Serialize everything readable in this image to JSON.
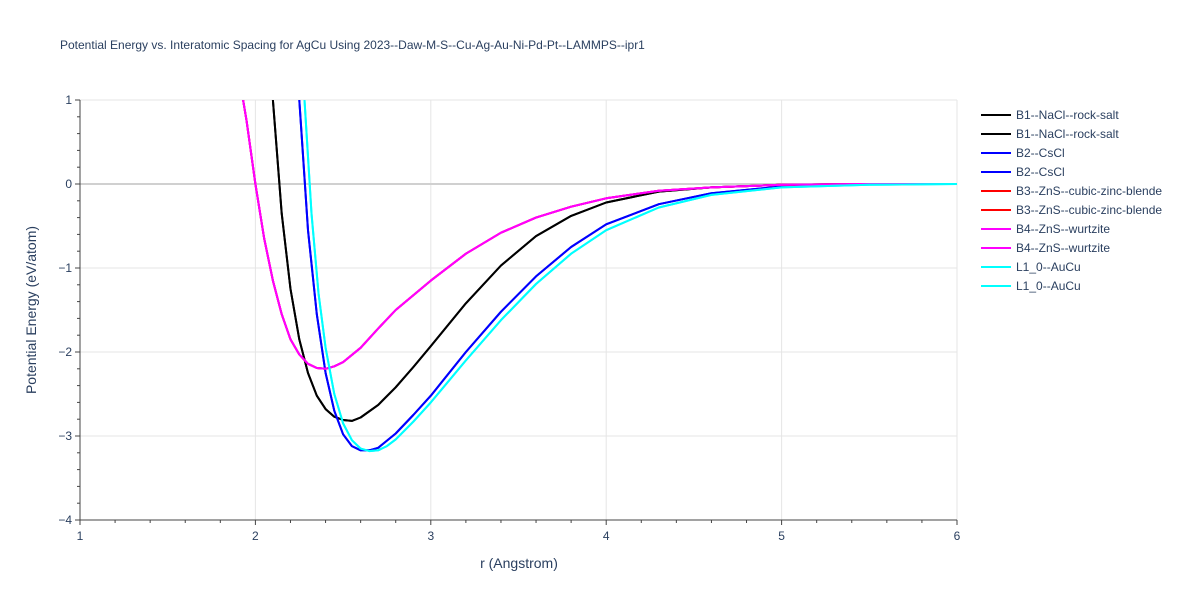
{
  "chart_data": {
    "type": "line",
    "title": "Potential Energy vs. Interatomic Spacing for AgCu Using 2023--Daw-M-S--Cu-Ag-Au-Ni-Pd-Pt--LAMMPS--ipr1",
    "xlabel": "r (Angstrom)",
    "ylabel": "Potential Energy (eV/atom)",
    "xlim": [
      1,
      6
    ],
    "ylim": [
      -4,
      1
    ],
    "x_ticks": [
      "1",
      "2",
      "3",
      "4",
      "5",
      "6"
    ],
    "y_ticks": [
      "1",
      "0",
      "−1",
      "−2",
      "−3",
      "−4"
    ],
    "grid": true,
    "legend_position": "right",
    "series": [
      {
        "name": "B1--NaCl--rock-salt",
        "color": "#000000",
        "x": [
          2.1,
          2.15,
          2.2,
          2.25,
          2.3,
          2.35,
          2.4,
          2.45,
          2.5,
          2.55,
          2.6,
          2.7,
          2.8,
          2.9,
          3.0,
          3.2,
          3.4,
          3.6,
          3.8,
          4.0,
          4.3,
          4.6,
          5.0,
          5.5,
          6.0
        ],
        "y": [
          1.0,
          -0.35,
          -1.25,
          -1.85,
          -2.25,
          -2.52,
          -2.68,
          -2.77,
          -2.81,
          -2.82,
          -2.78,
          -2.63,
          -2.42,
          -2.18,
          -1.93,
          -1.42,
          -0.97,
          -0.62,
          -0.38,
          -0.22,
          -0.09,
          -0.04,
          -0.01,
          0.0,
          0.0
        ]
      },
      {
        "name": "B1--NaCl--rock-salt",
        "color": "#000000",
        "x": [
          2.1,
          2.15,
          2.2,
          2.25,
          2.3,
          2.35,
          2.4,
          2.45,
          2.5,
          2.55,
          2.6,
          2.7,
          2.8,
          2.9,
          3.0,
          3.2,
          3.4,
          3.6,
          3.8,
          4.0,
          4.3,
          4.6,
          5.0,
          5.5,
          6.0
        ],
        "y": [
          1.0,
          -0.35,
          -1.25,
          -1.85,
          -2.25,
          -2.52,
          -2.68,
          -2.77,
          -2.81,
          -2.82,
          -2.78,
          -2.63,
          -2.42,
          -2.18,
          -1.93,
          -1.42,
          -0.97,
          -0.62,
          -0.38,
          -0.22,
          -0.09,
          -0.04,
          -0.01,
          0.0,
          0.0
        ]
      },
      {
        "name": "B2--CsCl",
        "color": "#0000ff",
        "x": [
          2.25,
          2.3,
          2.35,
          2.4,
          2.45,
          2.5,
          2.55,
          2.6,
          2.65,
          2.7,
          2.8,
          2.9,
          3.0,
          3.2,
          3.4,
          3.6,
          3.8,
          4.0,
          4.3,
          4.6,
          5.0,
          5.5,
          6.0
        ],
        "y": [
          1.0,
          -0.55,
          -1.55,
          -2.25,
          -2.7,
          -2.98,
          -3.12,
          -3.17,
          -3.17,
          -3.14,
          -2.97,
          -2.75,
          -2.52,
          -2.0,
          -1.52,
          -1.1,
          -0.75,
          -0.48,
          -0.24,
          -0.11,
          -0.03,
          0.0,
          0.0
        ]
      },
      {
        "name": "B2--CsCl",
        "color": "#0000ff",
        "x": [
          2.25,
          2.3,
          2.35,
          2.4,
          2.45,
          2.5,
          2.55,
          2.6,
          2.65,
          2.7,
          2.8,
          2.9,
          3.0,
          3.2,
          3.4,
          3.6,
          3.8,
          4.0,
          4.3,
          4.6,
          5.0,
          5.5,
          6.0
        ],
        "y": [
          1.0,
          -0.55,
          -1.55,
          -2.25,
          -2.7,
          -2.98,
          -3.12,
          -3.17,
          -3.17,
          -3.14,
          -2.97,
          -2.75,
          -2.52,
          -2.0,
          -1.52,
          -1.1,
          -0.75,
          -0.48,
          -0.24,
          -0.11,
          -0.03,
          0.0,
          0.0
        ]
      },
      {
        "name": "B3--ZnS--cubic-zinc-blende",
        "color": "#ff0000",
        "x": [
          1.93,
          1.95,
          2.0,
          2.05,
          2.1,
          2.15,
          2.2,
          2.25,
          2.3,
          2.35,
          2.4,
          2.45,
          2.5,
          2.6,
          2.7,
          2.8,
          3.0,
          3.2,
          3.4,
          3.6,
          3.8,
          4.0,
          4.3,
          4.6,
          5.0,
          5.5,
          6.0
        ],
        "y": [
          1.0,
          0.75,
          0.0,
          -0.65,
          -1.15,
          -1.55,
          -1.85,
          -2.03,
          -2.14,
          -2.19,
          -2.2,
          -2.17,
          -2.12,
          -1.95,
          -1.72,
          -1.5,
          -1.15,
          -0.83,
          -0.58,
          -0.4,
          -0.27,
          -0.17,
          -0.08,
          -0.04,
          -0.01,
          0.0,
          0.0
        ]
      },
      {
        "name": "B3--ZnS--cubic-zinc-blende",
        "color": "#ff0000",
        "x": [
          1.93,
          1.95,
          2.0,
          2.05,
          2.1,
          2.15,
          2.2,
          2.25,
          2.3,
          2.35,
          2.4,
          2.45,
          2.5,
          2.6,
          2.7,
          2.8,
          3.0,
          3.2,
          3.4,
          3.6,
          3.8,
          4.0,
          4.3,
          4.6,
          5.0,
          5.5,
          6.0
        ],
        "y": [
          1.0,
          0.75,
          0.0,
          -0.65,
          -1.15,
          -1.55,
          -1.85,
          -2.03,
          -2.14,
          -2.19,
          -2.2,
          -2.17,
          -2.12,
          -1.95,
          -1.72,
          -1.5,
          -1.15,
          -0.83,
          -0.58,
          -0.4,
          -0.27,
          -0.17,
          -0.08,
          -0.04,
          -0.01,
          0.0,
          0.0
        ]
      },
      {
        "name": "B4--ZnS--wurtzite",
        "color": "#ff00ff",
        "x": [
          1.93,
          1.95,
          2.0,
          2.05,
          2.1,
          2.15,
          2.2,
          2.25,
          2.3,
          2.35,
          2.4,
          2.45,
          2.5,
          2.6,
          2.7,
          2.8,
          3.0,
          3.2,
          3.4,
          3.6,
          3.8,
          4.0,
          4.3,
          4.6,
          5.0,
          5.5,
          6.0
        ],
        "y": [
          1.0,
          0.75,
          0.0,
          -0.65,
          -1.15,
          -1.55,
          -1.85,
          -2.03,
          -2.14,
          -2.19,
          -2.2,
          -2.17,
          -2.12,
          -1.95,
          -1.72,
          -1.5,
          -1.15,
          -0.83,
          -0.58,
          -0.4,
          -0.27,
          -0.17,
          -0.08,
          -0.04,
          -0.01,
          0.0,
          0.0
        ]
      },
      {
        "name": "B4--ZnS--wurtzite",
        "color": "#ff00ff",
        "x": [
          1.93,
          1.95,
          2.0,
          2.05,
          2.1,
          2.15,
          2.2,
          2.25,
          2.3,
          2.35,
          2.4,
          2.45,
          2.5,
          2.6,
          2.7,
          2.8,
          3.0,
          3.2,
          3.4,
          3.6,
          3.8,
          4.0,
          4.3,
          4.6,
          5.0,
          5.5,
          6.0
        ],
        "y": [
          1.0,
          0.75,
          0.0,
          -0.65,
          -1.15,
          -1.55,
          -1.85,
          -2.03,
          -2.14,
          -2.19,
          -2.2,
          -2.17,
          -2.12,
          -1.95,
          -1.72,
          -1.5,
          -1.15,
          -0.83,
          -0.58,
          -0.4,
          -0.27,
          -0.17,
          -0.08,
          -0.04,
          -0.01,
          0.0,
          0.0
        ]
      },
      {
        "name": "L1_0--AuCu",
        "color": "#00ffff",
        "x": [
          2.28,
          2.32,
          2.36,
          2.4,
          2.45,
          2.5,
          2.55,
          2.6,
          2.65,
          2.7,
          2.75,
          2.8,
          2.9,
          3.0,
          3.2,
          3.4,
          3.6,
          3.8,
          4.0,
          4.3,
          4.6,
          5.0,
          5.5,
          6.0
        ],
        "y": [
          1.0,
          -0.35,
          -1.3,
          -1.95,
          -2.5,
          -2.85,
          -3.05,
          -3.15,
          -3.18,
          -3.17,
          -3.12,
          -3.04,
          -2.83,
          -2.6,
          -2.1,
          -1.62,
          -1.19,
          -0.83,
          -0.55,
          -0.28,
          -0.13,
          -0.04,
          -0.01,
          0.0
        ]
      },
      {
        "name": "L1_0--AuCu",
        "color": "#00ffff",
        "x": [
          2.28,
          2.32,
          2.36,
          2.4,
          2.45,
          2.5,
          2.55,
          2.6,
          2.65,
          2.7,
          2.75,
          2.8,
          2.9,
          3.0,
          3.2,
          3.4,
          3.6,
          3.8,
          4.0,
          4.3,
          4.6,
          5.0,
          5.5,
          6.0
        ],
        "y": [
          1.0,
          -0.35,
          -1.3,
          -1.95,
          -2.5,
          -2.85,
          -3.05,
          -3.15,
          -3.18,
          -3.17,
          -3.12,
          -3.04,
          -2.83,
          -2.6,
          -2.1,
          -1.62,
          -1.19,
          -0.83,
          -0.55,
          -0.28,
          -0.13,
          -0.04,
          -0.01,
          0.0
        ]
      }
    ]
  }
}
